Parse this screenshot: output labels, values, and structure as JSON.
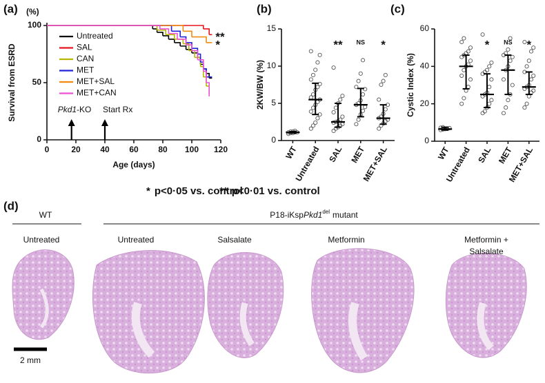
{
  "chart_data": [
    {
      "type": "line",
      "step": true,
      "panel_label": "(a)",
      "y_unit": "(%)",
      "ylabel": "Survival from ESRD",
      "xlabel": "Age (days)",
      "xlim": [
        0,
        120
      ],
      "xticks": [
        0,
        20,
        40,
        60,
        80,
        100,
        120
      ],
      "ylim": [
        0,
        100
      ],
      "yticks": [
        0,
        50,
        100
      ],
      "series": [
        {
          "name": "Untreated",
          "color": "#000000",
          "x": [
            0,
            73,
            76,
            80,
            84,
            88,
            92,
            96,
            100,
            104,
            106,
            108,
            110,
            112,
            114
          ],
          "values": [
            100,
            97,
            94,
            91,
            88,
            85,
            82,
            79,
            76,
            72,
            66,
            62,
            58,
            54,
            54
          ]
        },
        {
          "name": "SAL",
          "color": "#e8141c",
          "x": [
            0,
            108,
            112,
            114
          ],
          "values": [
            100,
            97,
            92,
            92
          ],
          "significance": "**"
        },
        {
          "name": "CAN",
          "color": "#b5b800",
          "x": [
            0,
            76,
            82,
            88,
            94,
            98,
            102,
            106,
            108,
            110,
            112
          ],
          "values": [
            100,
            96,
            92,
            88,
            84,
            78,
            72,
            64,
            55,
            47,
            40
          ]
        },
        {
          "name": "MET",
          "color": "#1f22d6",
          "x": [
            0,
            86,
            92,
            96,
            100,
            104,
            106,
            108,
            110,
            114
          ],
          "values": [
            100,
            95,
            90,
            85,
            80,
            75,
            68,
            62,
            55,
            55
          ]
        },
        {
          "name": "MET+SAL",
          "color": "#f08a10",
          "x": [
            0,
            94,
            100,
            110,
            114
          ],
          "values": [
            100,
            95,
            90,
            85,
            85
          ],
          "significance": "*"
        },
        {
          "name": "MET+CAN",
          "color": "#ee4fd8",
          "x": [
            0,
            78,
            84,
            90,
            96,
            100,
            104,
            108,
            110,
            112
          ],
          "values": [
            100,
            97,
            93,
            88,
            83,
            78,
            70,
            60,
            50,
            38
          ]
        }
      ],
      "markers": [
        {
          "x": 17,
          "label_parts": [
            "Pkd1",
            "-KO"
          ]
        },
        {
          "x": 40,
          "label": "Start Rx"
        }
      ]
    },
    {
      "type": "dotplot",
      "panel_label": "(b)",
      "ylabel": "2KW/BW (%)",
      "ylim": [
        0,
        15
      ],
      "yticks": [
        0,
        5,
        10,
        15
      ],
      "groups": [
        {
          "name": "WT",
          "values": [
            0.9,
            1.0,
            1.0,
            1.1,
            1.1,
            1.1,
            1.2,
            1.2,
            1.3
          ],
          "median": 1.1,
          "low": 1.0,
          "high": 1.2
        },
        {
          "name": "Untreated",
          "values": [
            1.6,
            2.0,
            2.4,
            3.0,
            3.5,
            3.9,
            4.4,
            4.8,
            5.2,
            5.5,
            5.8,
            6.2,
            6.8,
            7.2,
            7.6,
            8.2,
            8.8,
            9.5,
            10.5,
            11.5,
            12.0
          ],
          "median": 5.5,
          "low": 3.5,
          "high": 7.7
        },
        {
          "name": "SAL",
          "values": [
            1.3,
            1.6,
            1.8,
            2.0,
            2.2,
            2.4,
            2.5,
            2.6,
            2.8,
            3.2,
            3.8,
            4.4,
            5.0,
            5.5,
            6.0,
            9.8
          ],
          "median": 2.5,
          "low": 1.8,
          "high": 5.0,
          "significance": "**"
        },
        {
          "name": "MET",
          "values": [
            2.2,
            2.8,
            3.5,
            4.0,
            4.5,
            4.8,
            5.0,
            5.4,
            6.2,
            6.9,
            7.2,
            8.0,
            9.0,
            10.8
          ],
          "median": 4.8,
          "low": 3.2,
          "high": 7.0,
          "significance": "NS"
        },
        {
          "name": "MET+SAL",
          "values": [
            1.6,
            2.0,
            2.3,
            2.6,
            2.8,
            3.0,
            3.2,
            3.6,
            4.2,
            4.8,
            5.5,
            7.5,
            8.0,
            8.8
          ],
          "median": 3.0,
          "low": 2.2,
          "high": 4.8,
          "significance": "*"
        }
      ]
    },
    {
      "type": "dotplot",
      "panel_label": "(c)",
      "ylabel": "Cystic Index (%)",
      "ylim": [
        0,
        60
      ],
      "yticks": [
        0,
        20,
        40,
        60
      ],
      "groups": [
        {
          "name": "WT",
          "values": [
            6.0,
            6.3,
            6.5,
            6.6,
            7.0,
            7.2,
            7.5
          ],
          "median": 6.5,
          "low": 6.0,
          "high": 7.5
        },
        {
          "name": "Untreated",
          "values": [
            20,
            23,
            27,
            29,
            33,
            35,
            38,
            40,
            41,
            43,
            45,
            46,
            47,
            48,
            50,
            53,
            55
          ],
          "median": 40,
          "low": 28,
          "high": 46
        },
        {
          "name": "SAL",
          "values": [
            15,
            16,
            18,
            20,
            22,
            24,
            25,
            26,
            29,
            33,
            36,
            37,
            38,
            40,
            42,
            57
          ],
          "median": 25,
          "low": 18,
          "high": 36,
          "significance": "*"
        },
        {
          "name": "MET",
          "values": [
            15,
            18,
            22,
            25,
            30,
            33,
            38,
            40,
            43,
            45,
            46,
            47,
            49,
            55
          ],
          "median": 38,
          "low": 25,
          "high": 46,
          "significance": "NS"
        },
        {
          "name": "MET+SAL",
          "values": [
            18,
            20,
            24,
            26,
            27,
            28,
            29,
            30,
            33,
            35,
            37,
            40,
            43,
            48,
            50,
            53
          ],
          "median": 29,
          "low": 25,
          "high": 37,
          "significance": "*"
        }
      ]
    }
  ],
  "footnote": [
    {
      "mark": "*",
      "text": "p<0·05 vs. control"
    },
    {
      "mark": "**",
      "text": "p<0·01 vs. control"
    }
  ],
  "panel_d": {
    "panel_label": "(d)",
    "groups": [
      {
        "text": "WT"
      },
      {
        "parts": [
          "P18-iKsp",
          "Pkd1",
          "del",
          "mutant"
        ]
      }
    ],
    "sections": [
      {
        "lines": [
          "Untreated"
        ]
      },
      {
        "lines": [
          "Untreated"
        ]
      },
      {
        "lines": [
          "Salsalate"
        ]
      },
      {
        "lines": [
          "Metformin"
        ]
      },
      {
        "lines": [
          "Metformin +",
          "Salsalate"
        ]
      }
    ],
    "scale_bar": "2 mm"
  }
}
